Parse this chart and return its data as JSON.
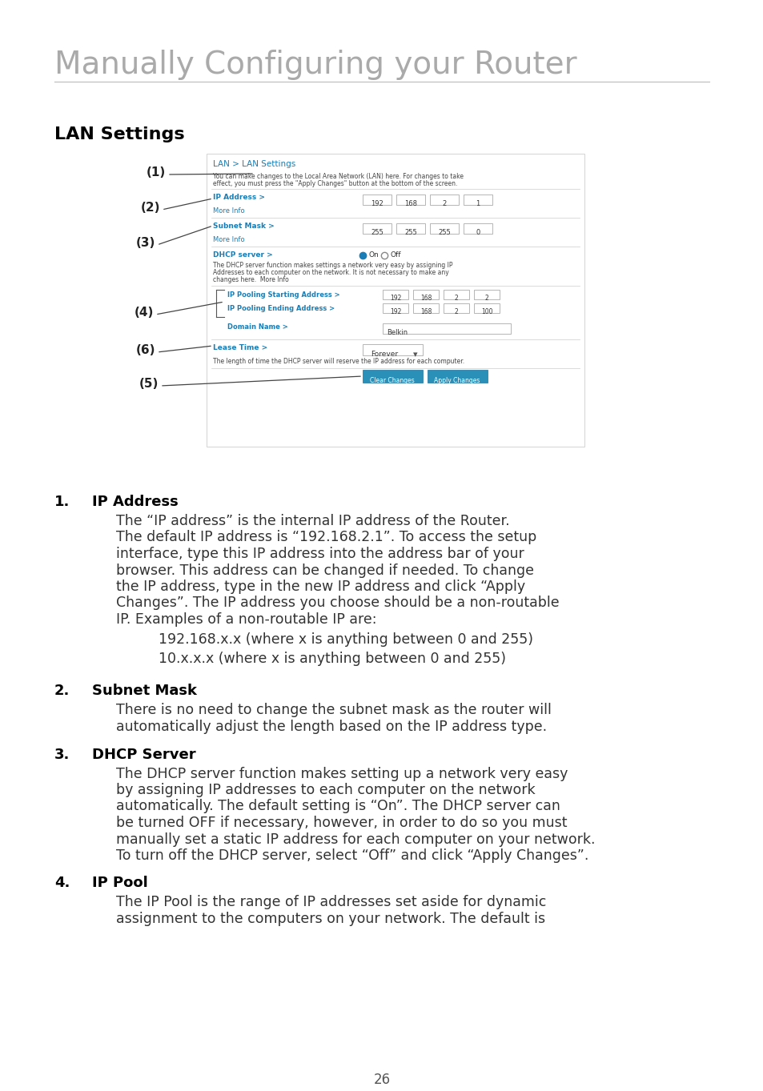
{
  "title": "Manually Configuring your Router",
  "title_color": "#aaaaaa",
  "title_fontsize": 28,
  "section_heading": "LAN Settings",
  "section_heading_color": "#000000",
  "section_heading_fontsize": 16,
  "body_color": "#333333",
  "body_fontsize": 12.5,
  "bold_color": "#000000",
  "page_number": "26",
  "background_color": "#ffffff",
  "items": [
    {
      "number": "1.",
      "heading": "IP Address",
      "body": "The “IP address” is the internal IP address of the Router.\nThe default IP address is “192.168.2.1”. To access the setup\ninterface, type this IP address into the address bar of your\nbrowser. This address can be changed if needed. To change\nthe IP address, type in the new IP address and click “Apply\nChanges”. The IP address you choose should be a non-routable\nIP. Examples of a non-routable IP are:",
      "indented_lines": [
        "192.168.x.x (where x is anything between 0 and 255)",
        "10.x.x.x (where x is anything between 0 and 255)"
      ]
    },
    {
      "number": "2.",
      "heading": "Subnet Mask",
      "body": "There is no need to change the subnet mask as the router will\nautomatically adjust the length based on the IP address type."
    },
    {
      "number": "3.",
      "heading": "DHCP Server",
      "body": "The DHCP server function makes setting up a network very easy\nby assigning IP addresses to each computer on the network\nautomatically. The default setting is “On”. The DHCP server can\nbe turned OFF if necessary, however, in order to do so you must\nmanually set a static IP address for each computer on your network.\nTo turn off the DHCP server, select “Off” and click “Apply Changes”."
    },
    {
      "number": "4.",
      "heading": "IP Pool",
      "body": "The IP Pool is the range of IP addresses set aside for dynamic\nassignment to the computers on your network. The default is"
    }
  ]
}
